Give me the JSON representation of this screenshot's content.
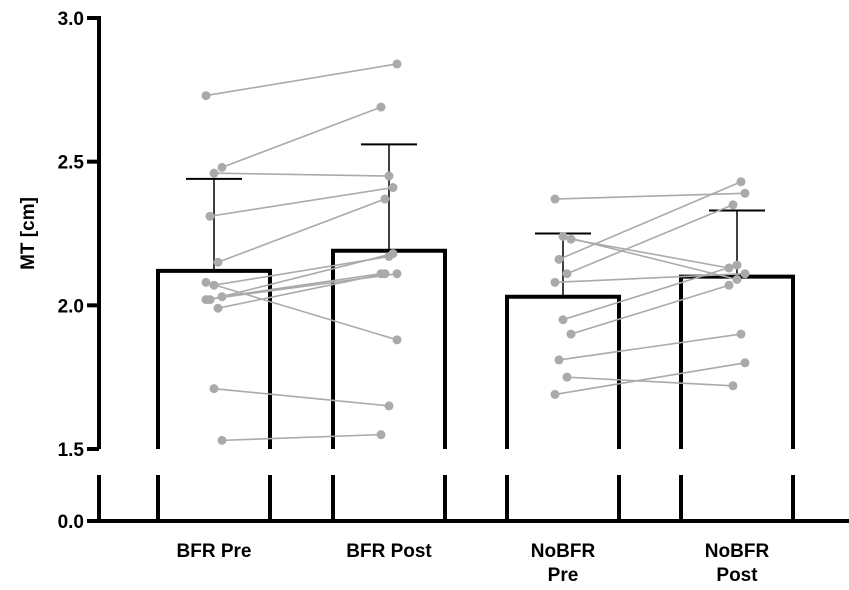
{
  "chart_data": {
    "type": "bar",
    "ylabel": "MT [cm]",
    "y_axis_break": {
      "lower_segment": [
        0,
        0.3
      ],
      "upper_segment": [
        1.5,
        3.0
      ]
    },
    "y_ticks": [
      "3.0",
      "2.5",
      "2.0",
      "1.5",
      "0.0"
    ],
    "y_tick_values": [
      3.0,
      2.5,
      2.0,
      1.5,
      0.0
    ],
    "categories": [
      {
        "lines": [
          "BFR Pre"
        ]
      },
      {
        "lines": [
          "BFR Post"
        ]
      },
      {
        "lines": [
          "NoBFR",
          "Pre"
        ]
      },
      {
        "lines": [
          "NoBFR",
          "Post"
        ]
      }
    ],
    "means": [
      2.12,
      2.19,
      2.03,
      2.1
    ],
    "sd_upper": [
      2.44,
      2.56,
      2.25,
      2.33
    ],
    "paired_individuals": [
      {
        "group": "BFR",
        "pairs": [
          [
            2.73,
            2.84
          ],
          [
            2.46,
            2.45
          ],
          [
            2.48,
            2.69
          ],
          [
            2.31,
            2.41
          ],
          [
            2.15,
            2.37
          ],
          [
            2.08,
            1.88
          ],
          [
            2.07,
            2.17
          ],
          [
            2.03,
            2.11
          ],
          [
            2.02,
            2.18
          ],
          [
            1.99,
            2.11
          ],
          [
            2.02,
            2.11
          ],
          [
            1.71,
            1.65
          ],
          [
            1.53,
            1.55
          ]
        ]
      },
      {
        "group": "NoBFR",
        "pairs": [
          [
            2.37,
            2.39
          ],
          [
            2.24,
            2.09
          ],
          [
            2.23,
            2.13
          ],
          [
            2.16,
            2.43
          ],
          [
            2.11,
            2.35
          ],
          [
            2.08,
            2.11
          ],
          [
            1.95,
            2.14
          ],
          [
            1.9,
            2.07
          ],
          [
            1.81,
            1.9
          ],
          [
            1.75,
            1.72
          ],
          [
            1.69,
            1.8
          ]
        ]
      }
    ],
    "colors": {
      "bar_edge": "#000000",
      "bar_fill": "#ffffff",
      "individual": "#aaaaaa"
    }
  }
}
